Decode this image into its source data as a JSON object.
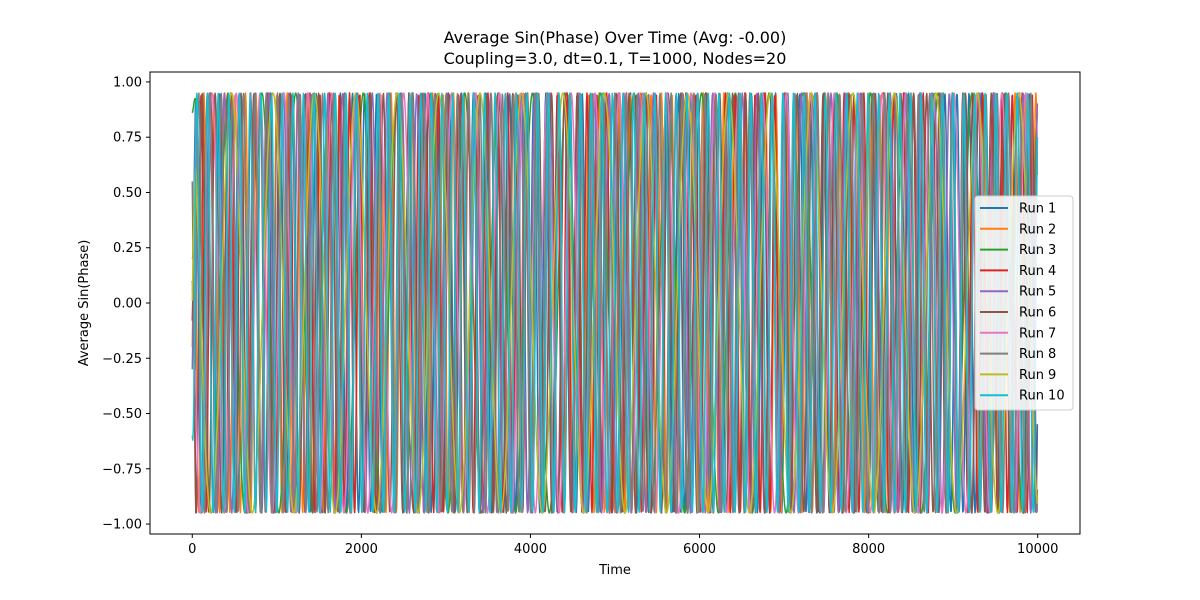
{
  "chart_data": {
    "type": "line",
    "title": "Average Sin(Phase) Over Time (Avg: -0.00)",
    "subtitle": "Coupling=3.0, dt=0.1, T=1000, Nodes=20",
    "xlabel": "Time",
    "ylabel": "Average Sin(Phase)",
    "xlim": [
      -500,
      10500
    ],
    "ylim": [
      -1.045,
      1.045
    ],
    "xticks": [
      0,
      2000,
      4000,
      6000,
      8000,
      10000
    ],
    "xtick_labels": [
      "0",
      "2000",
      "4000",
      "6000",
      "8000",
      "10000"
    ],
    "yticks": [
      -1.0,
      -0.75,
      -0.5,
      -0.25,
      0.0,
      0.25,
      0.5,
      0.75,
      1.0
    ],
    "ytick_labels": [
      "−1.00",
      "−0.75",
      "−0.50",
      "−0.25",
      "0.00",
      "0.25",
      "0.50",
      "0.75",
      "1.00"
    ],
    "grid": false,
    "legend_position": "center-right",
    "amplitude": 0.95,
    "x_range": [
      0,
      10000
    ],
    "series": [
      {
        "name": "Run 1",
        "color": "#1f77b4",
        "period": 143,
        "phase": 0.0,
        "start": 0.2
      },
      {
        "name": "Run 2",
        "color": "#ff7f0e",
        "period": 123,
        "phase": 0.8,
        "start": -0.2
      },
      {
        "name": "Run 3",
        "color": "#2ca02c",
        "period": 400,
        "phase": 1.2,
        "start": 0.86
      },
      {
        "name": "Run 4",
        "color": "#d62728",
        "period": 117,
        "phase": 2.2,
        "start": -0.08
      },
      {
        "name": "Run 5",
        "color": "#9467bd",
        "period": 175,
        "phase": 0.5,
        "start": -0.3
      },
      {
        "name": "Run 6",
        "color": "#8c564b",
        "period": 153,
        "phase": 3.0,
        "start": 0.1
      },
      {
        "name": "Run 7",
        "color": "#e377c2",
        "period": 283,
        "phase": 2.6,
        "start": 0.05
      },
      {
        "name": "Run 8",
        "color": "#7f7f7f",
        "period": 133,
        "phase": 4.2,
        "start": 0.55
      },
      {
        "name": "Run 9",
        "color": "#bcbd22",
        "period": 490,
        "phase": 1.9,
        "start": 0.01
      },
      {
        "name": "Run 10",
        "color": "#17becf",
        "period": 126,
        "phase": 5.1,
        "start": -0.6
      }
    ]
  }
}
